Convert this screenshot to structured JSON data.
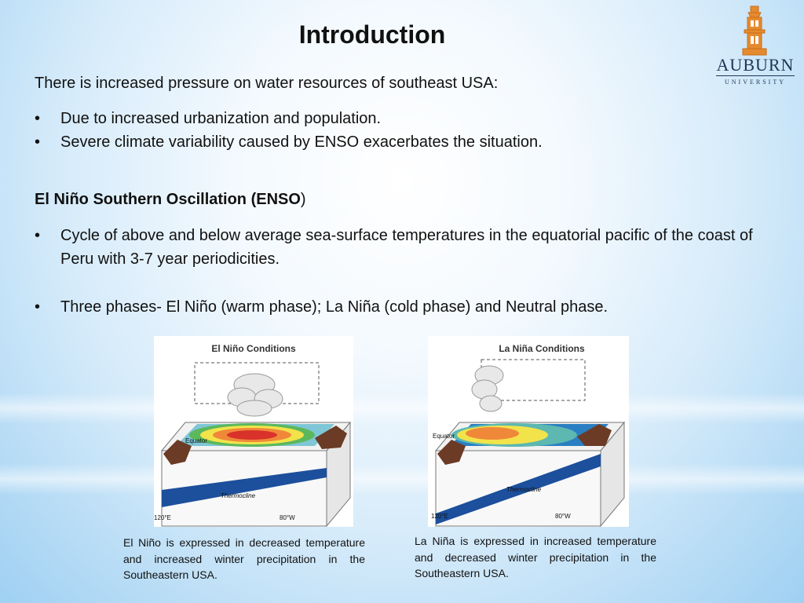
{
  "slide": {
    "title": "Introduction",
    "intro": "There is increased pressure on water resources of southeast USA:",
    "bullets_1": [
      "Due to increased urbanization and population.",
      "Severe climate variability caused by ENSO exacerbates the situation."
    ],
    "enso_heading_bold": "El Niño Southern Oscillation (ENSO",
    "enso_heading_tail": ")",
    "bullets_2": [
      "Cycle of above and below average sea-surface temperatures in the equatorial pacific of the coast of Peru with 3-7 year periodicities.",
      "Three phases- El Niño (warm phase); La Niña (cold phase) and Neutral phase."
    ],
    "bullet_symbol": "•"
  },
  "logo": {
    "name": "AUBURN",
    "sub": "UNIVERSITY"
  },
  "figures": {
    "el_nino": {
      "title": "El Niño Conditions",
      "equator": "Equator",
      "thermocline": "Thermocline",
      "left_lon": "120°E",
      "right_lon": "80°W",
      "caption": "El Niño is expressed in decreased temperature and increased winter precipitation in the Southeastern USA."
    },
    "la_nina": {
      "title": "La Niña Conditions",
      "equator": "Equator",
      "thermocline": "Thermocline",
      "left_lon": "120°E",
      "right_lon": "80°W",
      "caption": "La Niña is expressed in increased temperature and decreased winter precipitation in the Southeastern USA."
    }
  }
}
